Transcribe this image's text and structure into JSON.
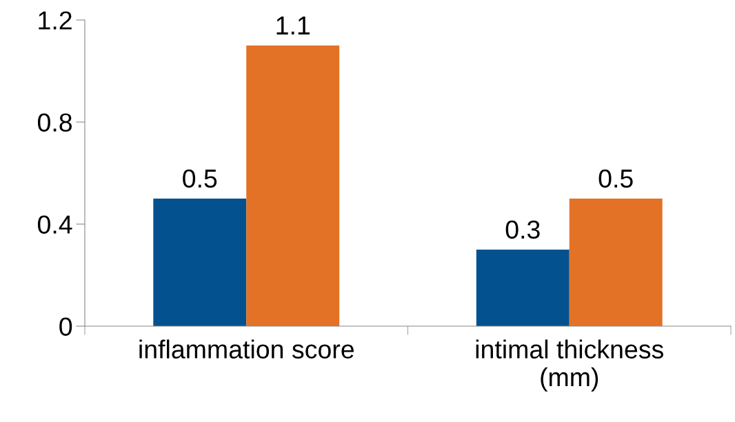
{
  "chart_data": {
    "type": "bar",
    "categories": [
      "inflammation score",
      "intimal thickness\n(mm)"
    ],
    "series": [
      {
        "color": "#03528f",
        "values": [
          0.5,
          0.3
        ]
      },
      {
        "color": "#e37226",
        "values": [
          1.1,
          0.5
        ]
      }
    ],
    "ylim": [
      0,
      1.2
    ],
    "yticks": [
      0,
      0.4,
      0.8,
      1.2
    ],
    "data_labels": true,
    "grid": false,
    "legend": false
  }
}
